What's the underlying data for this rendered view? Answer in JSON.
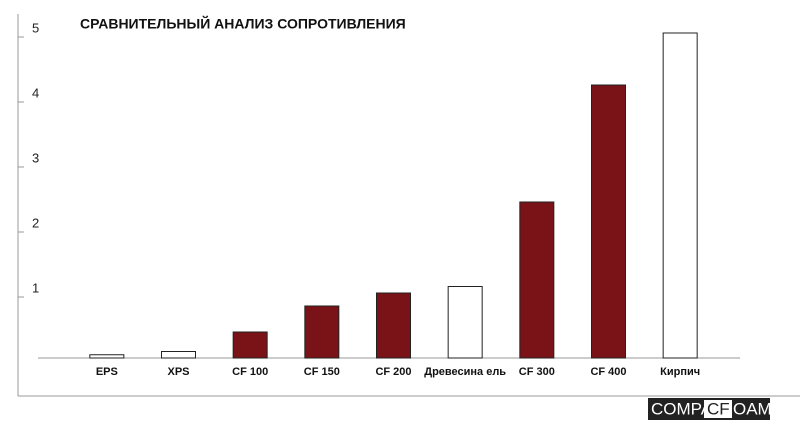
{
  "chart_data": {
    "type": "bar",
    "title": "СРАВНИТЕЛЬНЫЙ АНАЛИЗ СОПРОТИВЛЕНИЯ",
    "categories": [
      "EPS",
      "XPS",
      "CF 100",
      "CF 150",
      "CF 200",
      "Древесина ель",
      "CF 300",
      "CF 400",
      "Кирпич"
    ],
    "values": [
      0.05,
      0.1,
      0.4,
      0.8,
      1.0,
      1.1,
      2.4,
      4.2,
      5.0
    ],
    "colors": [
      "#ffffff",
      "#ffffff",
      "#7a1317",
      "#7a1317",
      "#7a1317",
      "#ffffff",
      "#7a1317",
      "#7a1317",
      "#ffffff"
    ],
    "ylim": [
      0,
      5
    ],
    "yticks": [
      1,
      2,
      3,
      4,
      5
    ],
    "grid": false
  },
  "logo": [
    "COMPA",
    "CF",
    "OAM"
  ]
}
